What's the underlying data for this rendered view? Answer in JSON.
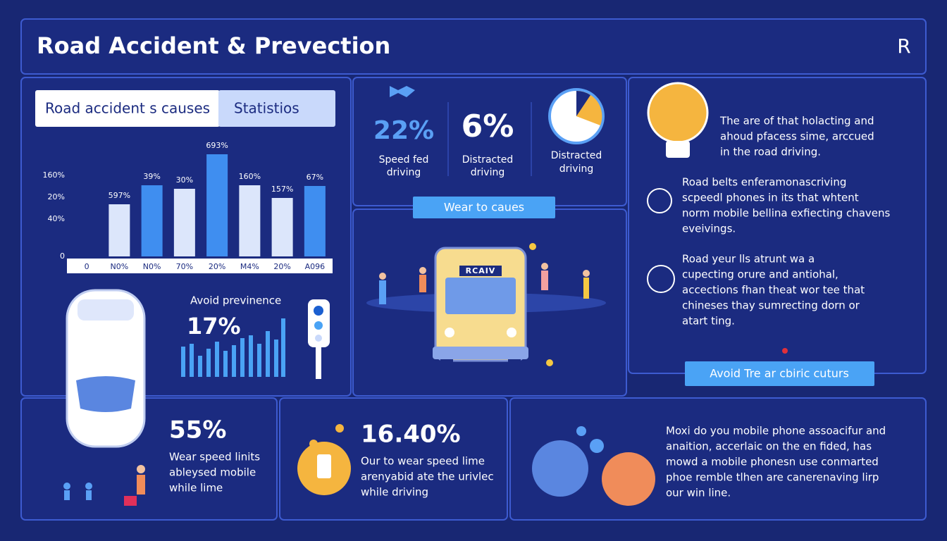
{
  "header": {
    "title": "Road Accident & Prevection",
    "logo": "R"
  },
  "tabs": [
    "Road accident s causes",
    "Statistios"
  ],
  "chart_data": {
    "type": "bar",
    "categories": [
      "0",
      "N0%",
      "N0%",
      "70%",
      "20%",
      "M4%",
      "20%",
      "A096"
    ],
    "values": [
      null,
      74,
      101,
      96,
      145,
      101,
      83,
      100
    ],
    "colors": [
      "#dce6fb",
      "#dce6fb",
      "#3f8ef0",
      "#dce6fb",
      "#3f8ef0",
      "#dce6fb",
      "#dce6fb",
      "#3f8ef0"
    ],
    "ylim": [
      0,
      150
    ],
    "bar_labels": [
      null,
      "597%",
      "39%",
      "30%",
      "693%",
      "160%",
      "157%",
      "67%"
    ],
    "axis_labels": [
      "160%",
      "20%",
      "40%",
      "0"
    ]
  },
  "stats": [
    {
      "value": "22%",
      "label": [
        "Speed fed",
        "driving"
      ]
    },
    {
      "value": "6%",
      "label": [
        "Distracted",
        "driving"
      ]
    },
    {
      "label": [
        "Distracted",
        "driving"
      ]
    }
  ],
  "buttons": [
    "Wear to caues",
    "Avoid Tre ar cbiric cuturs"
  ],
  "bus_sign": "RCAIV",
  "avoid": {
    "title": "Avoid previnence",
    "value": "17%"
  },
  "tips": [
    [
      "The are of that holacting and",
      "ahoud pfacess sime, arccued",
      "in the road driving."
    ],
    [
      "Road belts enferamonascriving",
      "scpeedl phones in its that whtent",
      "norm mobile bellina exfiecting chavens",
      "eveivings."
    ],
    [
      "Road yeur lls atrunt wa a",
      "cupecting orure and antiohal,",
      "accections fhan theat wor tee that",
      "chineses thay sumrecting dorn or",
      "atart ting."
    ]
  ],
  "bottom": [
    {
      "value": "55%",
      "lines": [
        "Wear speed linits",
        "ableysed mobile",
        "while lime"
      ]
    },
    {
      "value": "16.40%",
      "lines": [
        "Our to wear speed lime",
        "arenyabid ate the urivlec",
        "while driving"
      ]
    },
    {
      "lines": [
        "Moxi do you mobile phone assoacifur and",
        "anaition, accerlaic on the en fided, has",
        "mowd a mobile phonesn use conmarted",
        "phoe remble tlhen are canerenaving lirp",
        "our win line."
      ]
    }
  ]
}
